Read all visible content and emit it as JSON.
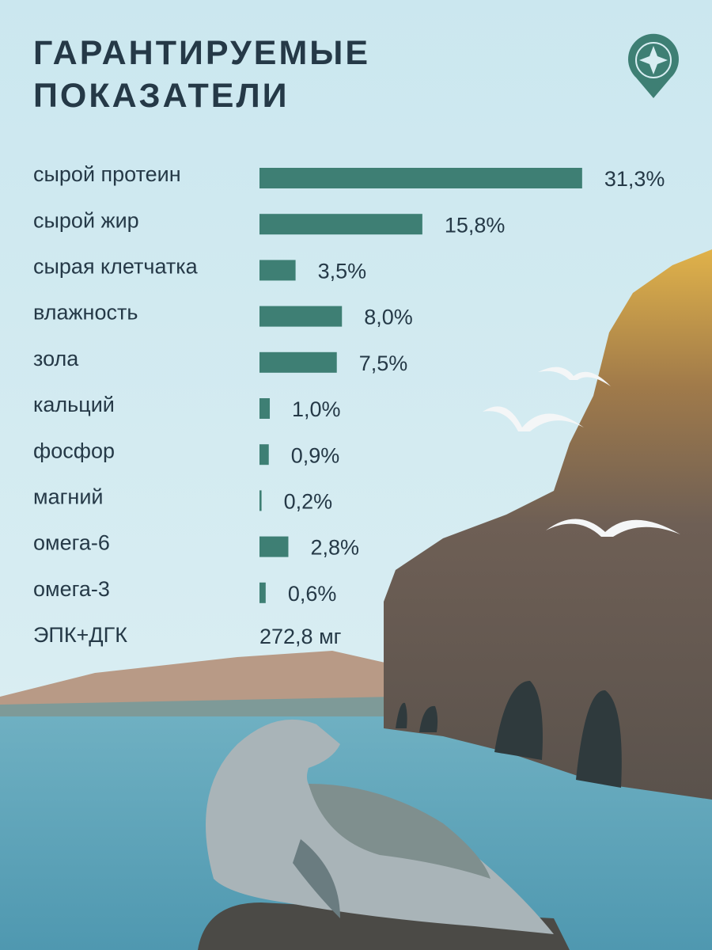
{
  "chart_data": {
    "type": "bar",
    "orientation": "horizontal",
    "title": "ГАРАНТИРУЕМЫЕ ПОКАЗАТЕЛИ",
    "categories": [
      "сырой протеин",
      "сырой жир",
      "сырая клетчатка",
      "влажность",
      "зола",
      "кальций",
      "фосфор",
      "магний",
      "омега-6",
      "омега-3"
    ],
    "values": [
      31.3,
      15.8,
      3.5,
      8.0,
      7.5,
      1.0,
      0.9,
      0.2,
      2.8,
      0.6
    ],
    "value_labels": [
      "31,3%",
      "15,8%",
      "3,5%",
      "8,0%",
      "7,5%",
      "1,0%",
      "0,9%",
      "0,2%",
      "2,8%",
      "0,6%"
    ],
    "color": "#3e7f74",
    "extra_row": {
      "label": "ЭПК+ДГК",
      "value_label": "272,8 мг"
    }
  }
}
